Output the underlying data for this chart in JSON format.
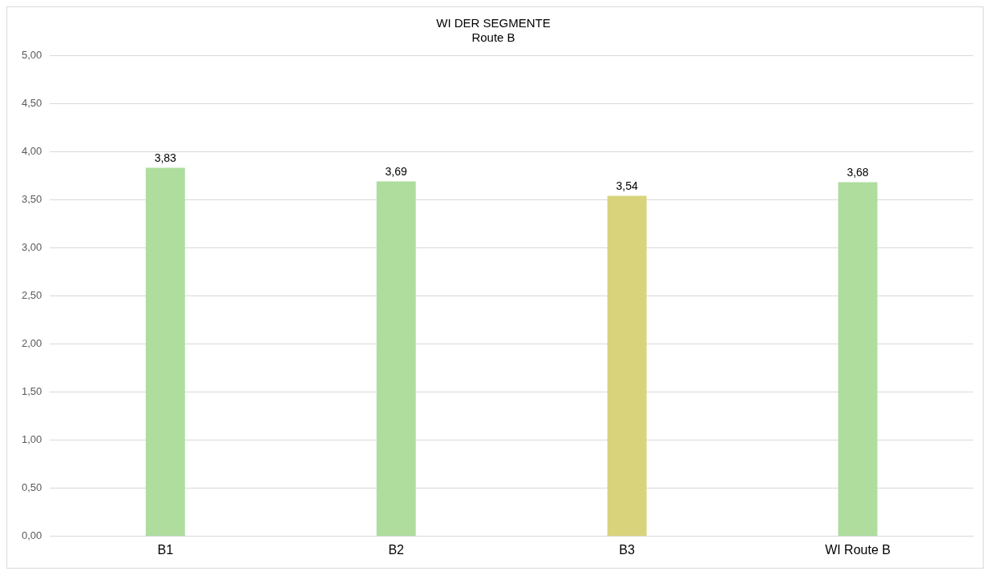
{
  "chart_data": {
    "type": "bar",
    "title": "WI DER SEGMENTE",
    "subtitle": "Route B",
    "categories": [
      "B1",
      "B2",
      "B3",
      "WI Route B"
    ],
    "values": [
      3.83,
      3.69,
      3.54,
      3.68
    ],
    "colors": [
      "#aedd9e",
      "#aedd9e",
      "#d9d47c",
      "#aedd9e"
    ],
    "ylim": [
      0,
      5
    ],
    "yticks": [
      {
        "value": 0,
        "label": "0,00"
      },
      {
        "value": 0.5,
        "label": "0,50"
      },
      {
        "value": 1,
        "label": "1,00"
      },
      {
        "value": 1.5,
        "label": "1,50"
      },
      {
        "value": 2,
        "label": "2,00"
      },
      {
        "value": 2.5,
        "label": "2,50"
      },
      {
        "value": 3,
        "label": "3,00"
      },
      {
        "value": 3.5,
        "label": "3,50"
      },
      {
        "value": 4,
        "label": "4,00"
      },
      {
        "value": 4.5,
        "label": "4,50"
      },
      {
        "value": 5,
        "label": "5,00"
      }
    ],
    "grid": "y",
    "legend": false,
    "value_labels": [
      "3,83",
      "3,69",
      "3,54",
      "3,68"
    ]
  }
}
